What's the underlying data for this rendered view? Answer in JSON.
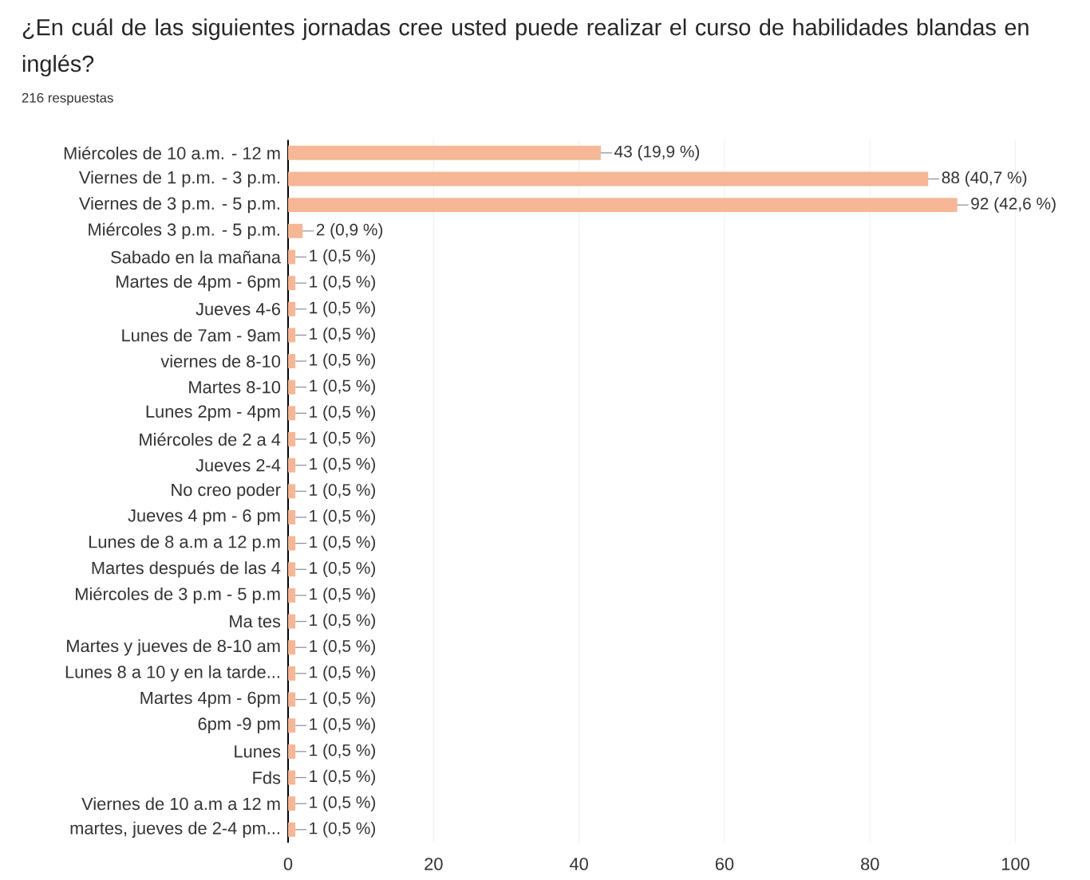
{
  "chart_data": {
    "type": "bar",
    "orientation": "horizontal",
    "title": "¿En cuál de las siguientes jornadas cree usted puede realizar el curso de habilidades blandas en inglés?",
    "subtitle": "216 respuestas",
    "categories": [
      "Miércoles de 10 a.m. - 12 m",
      "Viernes de 1 p.m. - 3 p.m.",
      "Viernes de 3 p.m. - 5 p.m.",
      "Miércoles 3 p.m. - 5 p.m.",
      "Sabado en la mañana",
      "Martes de 4pm - 6pm",
      "Jueves 4-6",
      "Lunes de 7am - 9am",
      "viernes de 8-10",
      "Martes 8-10",
      "Lunes 2pm - 4pm",
      "Miércoles de 2 a 4",
      "Jueves 2-4",
      "No creo poder",
      "Jueves 4 pm - 6 pm",
      "Lunes de 8 a.m a 12 p.m",
      "Martes después de las 4",
      "Miércoles de 3 p.m - 5 p.m",
      "Ma tes",
      "Martes y jueves de 8-10 am",
      "Lunes 8 a 10 y en la tarde...",
      "Martes 4pm - 6pm",
      "6pm -9 pm",
      "Lunes",
      "Fds",
      "Viernes de 10 a.m a 12 m",
      "martes, jueves de 2-4 pm..."
    ],
    "values": [
      43,
      88,
      92,
      2,
      1,
      1,
      1,
      1,
      1,
      1,
      1,
      1,
      1,
      1,
      1,
      1,
      1,
      1,
      1,
      1,
      1,
      1,
      1,
      1,
      1,
      1,
      1
    ],
    "value_labels": [
      "43 (19,9 %)",
      "88 (40,7 %)",
      "92 (42,6 %)",
      "2 (0,9 %)",
      "1 (0,5 %)",
      "1 (0,5 %)",
      "1 (0,5 %)",
      "1 (0,5 %)",
      "1 (0,5 %)",
      "1 (0,5 %)",
      "1 (0,5 %)",
      "1 (0,5 %)",
      "1 (0,5 %)",
      "1 (0,5 %)",
      "1 (0,5 %)",
      "1 (0,5 %)",
      "1 (0,5 %)",
      "1 (0,5 %)",
      "1 (0,5 %)",
      "1 (0,5 %)",
      "1 (0,5 %)",
      "1 (0,5 %)",
      "1 (0,5 %)",
      "1 (0,5 %)",
      "1 (0,5 %)",
      "1 (0,5 %)",
      "1 (0,5 %)"
    ],
    "color": "#f5b796",
    "xlim": [
      0,
      100
    ],
    "xticks": [
      0,
      20,
      40,
      60,
      80,
      100
    ],
    "grid": "x"
  }
}
